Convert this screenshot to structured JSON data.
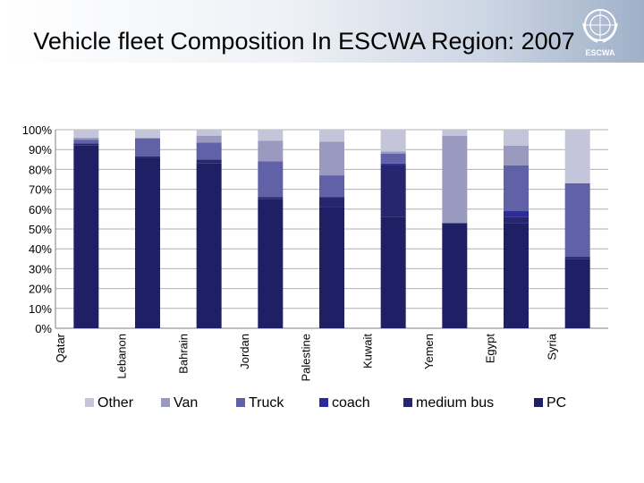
{
  "header": {
    "title": "Vehicle fleet Composition In ESCWA Region: 2007",
    "logo_text": "ESCWA"
  },
  "colors": {
    "PC": "#1f1f66",
    "medium bus": "#26266e",
    "coach": "#2b2b99",
    "Truck": "#6161a8",
    "Van": "#9a9ac0",
    "Other": "#c4c4da"
  },
  "chart_data": {
    "type": "bar",
    "stacked": true,
    "normalized": true,
    "title": "Vehicle fleet Composition In ESCWA Region: 2007",
    "categories": [
      "Qatar",
      "Lebanon",
      "Bahrain",
      "Jordan",
      "Palestine",
      "Kuwait",
      "Yemen",
      "Egypt",
      "Syria"
    ],
    "series": [
      {
        "name": "PC",
        "values": [
          92,
          86,
          83,
          65,
          61,
          56,
          53,
          53,
          35
        ]
      },
      {
        "name": "medium bus",
        "values": [
          1,
          0.5,
          2,
          1,
          5,
          26,
          0,
          3,
          1
        ]
      },
      {
        "name": "coach",
        "values": [
          0,
          0,
          0,
          0,
          0,
          1,
          0,
          3,
          0
        ]
      },
      {
        "name": "Truck",
        "values": [
          2,
          9,
          8.5,
          18,
          11,
          5,
          0,
          23,
          37
        ]
      },
      {
        "name": "Van",
        "values": [
          1,
          0.5,
          3.5,
          10.5,
          17,
          1,
          44,
          10,
          0
        ]
      },
      {
        "name": "Other",
        "values": [
          4,
          4,
          3,
          5.5,
          6,
          11,
          3,
          8,
          27
        ]
      }
    ],
    "ylim": [
      0,
      100
    ],
    "yticks": [
      "0%",
      "10%",
      "20%",
      "30%",
      "40%",
      "50%",
      "60%",
      "70%",
      "80%",
      "90%",
      "100%"
    ],
    "legend": {
      "position": "bottom",
      "order": [
        "Other",
        "Van",
        "Truck",
        "coach",
        "medium bus",
        "PC"
      ]
    },
    "grid": true
  }
}
